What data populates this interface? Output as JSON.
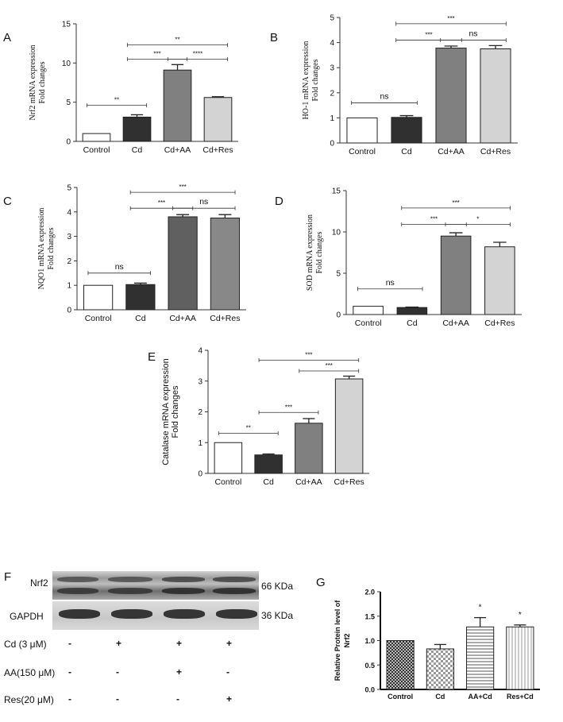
{
  "chart_data": [
    {
      "id": "A",
      "type": "bar",
      "panel_label": "A",
      "ylabel": [
        "Nrf2 mRNA expression",
        "Fold changes"
      ],
      "ylabel_font": "serif",
      "categories": [
        "Control",
        "Cd",
        "Cd+AA",
        "Cd+Res"
      ],
      "values": [
        1.0,
        3.1,
        9.1,
        5.6
      ],
      "errors": [
        0.0,
        0.3,
        0.7,
        0.1
      ],
      "ylim": [
        0,
        15
      ],
      "yticks": [
        0,
        5,
        10,
        15
      ],
      "bar_fill": [
        "#ffffff",
        "#303030",
        "#808080",
        "#d3d3d3"
      ],
      "pattern": [],
      "significance": [
        {
          "from": 0,
          "to": 1,
          "y": 4.6,
          "label": "**"
        },
        {
          "from": 1,
          "to": 2,
          "y": 10.5,
          "label": "***"
        },
        {
          "from": 2,
          "to": 3,
          "y": 10.5,
          "label": "****"
        },
        {
          "from": 1,
          "to": 3,
          "y": 12.3,
          "label": "**"
        }
      ]
    },
    {
      "id": "B",
      "type": "bar",
      "panel_label": "B",
      "ylabel": [
        "HO-1 mRNA expression",
        "Fold changes"
      ],
      "ylabel_font": "serif",
      "categories": [
        "Control",
        "Cd",
        "Cd+AA",
        "Cd+Res"
      ],
      "values": [
        1.0,
        1.02,
        3.78,
        3.75
      ],
      "errors": [
        0.0,
        0.07,
        0.08,
        0.13
      ],
      "ylim": [
        0,
        5
      ],
      "yticks": [
        0,
        1,
        2,
        3,
        4,
        5
      ],
      "bar_fill": [
        "#ffffff",
        "#303030",
        "#808080",
        "#d3d3d3"
      ],
      "pattern": [],
      "significance": [
        {
          "from": 0,
          "to": 1,
          "y": 1.6,
          "label": "ns"
        },
        {
          "from": 1,
          "to": 2,
          "y": 4.1,
          "label": "***"
        },
        {
          "from": 2,
          "to": 3,
          "y": 4.1,
          "label": "ns"
        },
        {
          "from": 1,
          "to": 3,
          "y": 4.75,
          "label": "***"
        }
      ]
    },
    {
      "id": "C",
      "type": "bar",
      "panel_label": "C",
      "ylabel": [
        "NQO1 mRNA expression",
        "Fold changes"
      ],
      "ylabel_font": "serif",
      "categories": [
        "Control",
        "Cd",
        "Cd+AA",
        "Cd+Res"
      ],
      "values": [
        1.0,
        1.03,
        3.8,
        3.75
      ],
      "errors": [
        0.0,
        0.06,
        0.09,
        0.14
      ],
      "ylim": [
        0,
        5
      ],
      "yticks": [
        0,
        1,
        2,
        3,
        4,
        5
      ],
      "bar_fill": [
        "#ffffff",
        "#303030",
        "#606060",
        "#888888"
      ],
      "pattern": [],
      "significance": [
        {
          "from": 0,
          "to": 1,
          "y": 1.5,
          "label": "ns"
        },
        {
          "from": 1,
          "to": 2,
          "y": 4.15,
          "label": "***"
        },
        {
          "from": 2,
          "to": 3,
          "y": 4.15,
          "label": "ns"
        },
        {
          "from": 1,
          "to": 3,
          "y": 4.8,
          "label": "***"
        }
      ]
    },
    {
      "id": "D",
      "type": "bar",
      "panel_label": "D",
      "ylabel": [
        "SOD mRNA expression",
        "Fold changes"
      ],
      "ylabel_font": "serif",
      "categories": [
        "Control",
        "Cd",
        "Cd+AA",
        "Cd+Res"
      ],
      "values": [
        1.0,
        0.85,
        9.5,
        8.2
      ],
      "errors": [
        0.0,
        0.05,
        0.4,
        0.55
      ],
      "ylim": [
        0,
        15
      ],
      "yticks": [
        0,
        5,
        10,
        15
      ],
      "bar_fill": [
        "#ffffff",
        "#303030",
        "#808080",
        "#d3d3d3"
      ],
      "pattern": [],
      "significance": [
        {
          "from": 0,
          "to": 1,
          "y": 3.1,
          "label": "ns"
        },
        {
          "from": 1,
          "to": 2,
          "y": 10.9,
          "label": "***"
        },
        {
          "from": 2,
          "to": 3,
          "y": 10.9,
          "label": "*"
        },
        {
          "from": 1,
          "to": 3,
          "y": 12.9,
          "label": "***"
        }
      ]
    },
    {
      "id": "E",
      "type": "bar",
      "panel_label": "E",
      "ylabel": [
        "Catalase mRNA expression",
        "Fold changes"
      ],
      "ylabel_font": "sans",
      "categories": [
        "Control",
        "Cd",
        "Cd+AA",
        "Cd+Res"
      ],
      "values": [
        1.0,
        0.6,
        1.63,
        3.07
      ],
      "errors": [
        0.0,
        0.03,
        0.15,
        0.09
      ],
      "ylim": [
        0,
        4
      ],
      "yticks": [
        0,
        1,
        2,
        3,
        4
      ],
      "bar_fill": [
        "#ffffff",
        "#303030",
        "#808080",
        "#d3d3d3"
      ],
      "pattern": [],
      "significance": [
        {
          "from": 0,
          "to": 1,
          "y": 1.3,
          "label": "**"
        },
        {
          "from": 1,
          "to": 2,
          "y": 1.98,
          "label": "***"
        },
        {
          "from": 2,
          "to": 3,
          "y": 3.33,
          "label": "***"
        },
        {
          "from": 1,
          "to": 3,
          "y": 3.68,
          "label": "***"
        }
      ]
    },
    {
      "id": "G",
      "type": "bar",
      "panel_label": "G",
      "ylabel": [
        "Relative Protein level of",
        "Nrf2"
      ],
      "ylabel_font": "sans-bold",
      "categories": [
        "Control",
        "Cd",
        "AA+Cd",
        "Res+Cd"
      ],
      "values": [
        1.0,
        0.83,
        1.28,
        1.28
      ],
      "errors": [
        0.0,
        0.09,
        0.19,
        0.04
      ],
      "ylim": [
        0,
        2.0
      ],
      "yticks": [
        0.0,
        0.5,
        1.0,
        1.5,
        2.0
      ],
      "bar_fill": [
        "#ffffff",
        "#ffffff",
        "#ffffff",
        "#ffffff"
      ],
      "pattern": [
        "crosshatch",
        "checker",
        "hlines",
        "vlines"
      ],
      "star_labels": [
        "",
        "",
        "*",
        "*"
      ],
      "significance": []
    }
  ],
  "western_blot": {
    "panel_label": "F",
    "rows": [
      {
        "name": "Nrf2",
        "size": "66 KDa"
      },
      {
        "name": "GAPDH",
        "size": "36 KDa"
      }
    ],
    "treatments": [
      {
        "label": "Cd (3 μM)",
        "signs": [
          "-",
          "+",
          "+",
          "+"
        ]
      },
      {
        "label": "AA(150 μM)",
        "signs": [
          "-",
          "-",
          "+",
          "-"
        ]
      },
      {
        "label": "Res(20 μM)",
        "signs": [
          "-",
          "-",
          "-",
          "+"
        ]
      }
    ]
  }
}
